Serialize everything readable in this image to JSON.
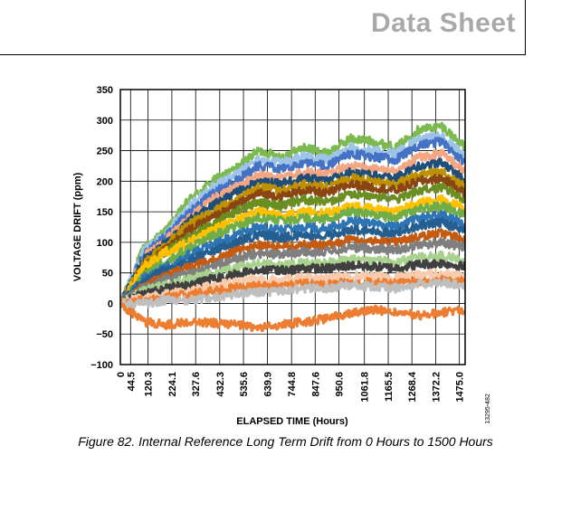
{
  "header": {
    "title": "Data Sheet"
  },
  "caption": "Figure 82. Internal Reference Long Term Drift from 0 Hours to 1500 Hours",
  "chart_data": {
    "type": "line",
    "xlabel": "ELAPSED TIME (Hours)",
    "ylabel": "VOLTAGE DRIFT (ppm)",
    "figure_id": "13295-482",
    "xlim": [
      0,
      1500
    ],
    "ylim": [
      -100,
      350
    ],
    "y_ticks": [
      -100,
      -50,
      0,
      50,
      100,
      150,
      200,
      250,
      300,
      350
    ],
    "y_tick_labels": [
      "−100",
      "−50",
      "0",
      "50",
      "100",
      "150",
      "200",
      "250",
      "300",
      "350"
    ],
    "x_ticks": [
      0,
      44.5,
      120.3,
      224.1,
      327.6,
      432.3,
      535.6,
      639.9,
      744.8,
      847.6,
      950.6,
      1061.8,
      1165.5,
      1268.4,
      1372.2,
      1475.0
    ],
    "x_tick_labels": [
      "0",
      "44.5",
      "120.3",
      "224.1",
      "327.6",
      "432.3",
      "535.6",
      "639.9",
      "744.8",
      "847.6",
      "950.6",
      "1061.8",
      "1165.5",
      "1268.4",
      "1372.2",
      "1475.0"
    ],
    "grid": true,
    "x_keypoints": [
      0,
      100,
      200,
      300,
      400,
      500,
      600,
      700,
      800,
      900,
      1000,
      1100,
      1200,
      1300,
      1400,
      1500
    ],
    "series": [
      {
        "color": "#7cba4f",
        "values": [
          0,
          90,
          120,
          170,
          200,
          220,
          250,
          240,
          255,
          245,
          270,
          265,
          255,
          285,
          290,
          255
        ]
      },
      {
        "color": "#9dc3e6",
        "values": [
          0,
          85,
          115,
          160,
          190,
          210,
          235,
          230,
          240,
          235,
          255,
          250,
          245,
          270,
          275,
          240
        ]
      },
      {
        "color": "#4472c4",
        "values": [
          0,
          80,
          110,
          150,
          180,
          200,
          225,
          220,
          230,
          225,
          245,
          240,
          235,
          260,
          265,
          230
        ]
      },
      {
        "color": "#f4a582",
        "values": [
          0,
          75,
          105,
          140,
          170,
          190,
          210,
          205,
          215,
          210,
          225,
          220,
          215,
          240,
          245,
          215
        ]
      },
      {
        "color": "#1f4e79",
        "values": [
          0,
          70,
          100,
          135,
          160,
          180,
          200,
          195,
          205,
          200,
          215,
          210,
          205,
          225,
          230,
          200
        ]
      },
      {
        "color": "#bf9000",
        "values": [
          0,
          65,
          95,
          130,
          150,
          170,
          190,
          185,
          195,
          190,
          205,
          200,
          195,
          210,
          215,
          190
        ]
      },
      {
        "color": "#8b4513",
        "values": [
          0,
          60,
          90,
          120,
          140,
          160,
          180,
          175,
          185,
          180,
          195,
          190,
          185,
          200,
          205,
          180
        ]
      },
      {
        "color": "#6b8e23",
        "values": [
          0,
          55,
          85,
          110,
          130,
          150,
          165,
          160,
          170,
          165,
          180,
          175,
          170,
          185,
          190,
          170
        ]
      },
      {
        "color": "#ffc000",
        "values": [
          0,
          60,
          85,
          100,
          120,
          135,
          150,
          145,
          150,
          148,
          160,
          155,
          150,
          165,
          170,
          155
        ]
      },
      {
        "color": "#70ad47",
        "values": [
          0,
          45,
          70,
          90,
          110,
          125,
          140,
          135,
          140,
          138,
          150,
          145,
          140,
          155,
          160,
          145
        ]
      },
      {
        "color": "#2e75b6",
        "values": [
          0,
          40,
          60,
          80,
          95,
          110,
          125,
          120,
          125,
          122,
          135,
          130,
          125,
          140,
          145,
          130
        ]
      },
      {
        "color": "#255e91",
        "values": [
          0,
          35,
          55,
          70,
          85,
          100,
          112,
          108,
          112,
          110,
          120,
          118,
          115,
          128,
          132,
          120
        ]
      },
      {
        "color": "#c55a11",
        "values": [
          0,
          30,
          45,
          60,
          70,
          85,
          95,
          92,
          96,
          95,
          105,
          102,
          100,
          110,
          115,
          105
        ]
      },
      {
        "color": "#7f7f7f",
        "values": [
          0,
          25,
          40,
          50,
          60,
          72,
          82,
          80,
          85,
          84,
          92,
          90,
          88,
          96,
          100,
          92
        ]
      },
      {
        "color": "#a9d18e",
        "values": [
          0,
          20,
          30,
          40,
          50,
          58,
          65,
          63,
          67,
          66,
          72,
          70,
          68,
          75,
          78,
          72
        ]
      },
      {
        "color": "#404040",
        "values": [
          0,
          15,
          25,
          30,
          40,
          48,
          55,
          54,
          58,
          57,
          62,
          60,
          58,
          64,
          66,
          60
        ]
      },
      {
        "color": "#f8cbad",
        "values": [
          0,
          10,
          15,
          20,
          28,
          35,
          40,
          38,
          42,
          41,
          45,
          44,
          42,
          47,
          49,
          45
        ]
      },
      {
        "color": "#ed7d31",
        "values": [
          0,
          5,
          10,
          15,
          20,
          25,
          30,
          28,
          32,
          31,
          35,
          34,
          32,
          36,
          38,
          35
        ]
      },
      {
        "color": "#bfbfbf",
        "values": [
          0,
          0,
          5,
          5,
          10,
          15,
          18,
          20,
          25,
          25,
          30,
          28,
          25,
          32,
          34,
          30
        ]
      },
      {
        "color": "#ed7d31",
        "values": [
          0,
          -30,
          -35,
          -30,
          -32,
          -35,
          -40,
          -35,
          -30,
          -25,
          -15,
          -10,
          -15,
          -20,
          -15,
          -10
        ]
      }
    ]
  }
}
